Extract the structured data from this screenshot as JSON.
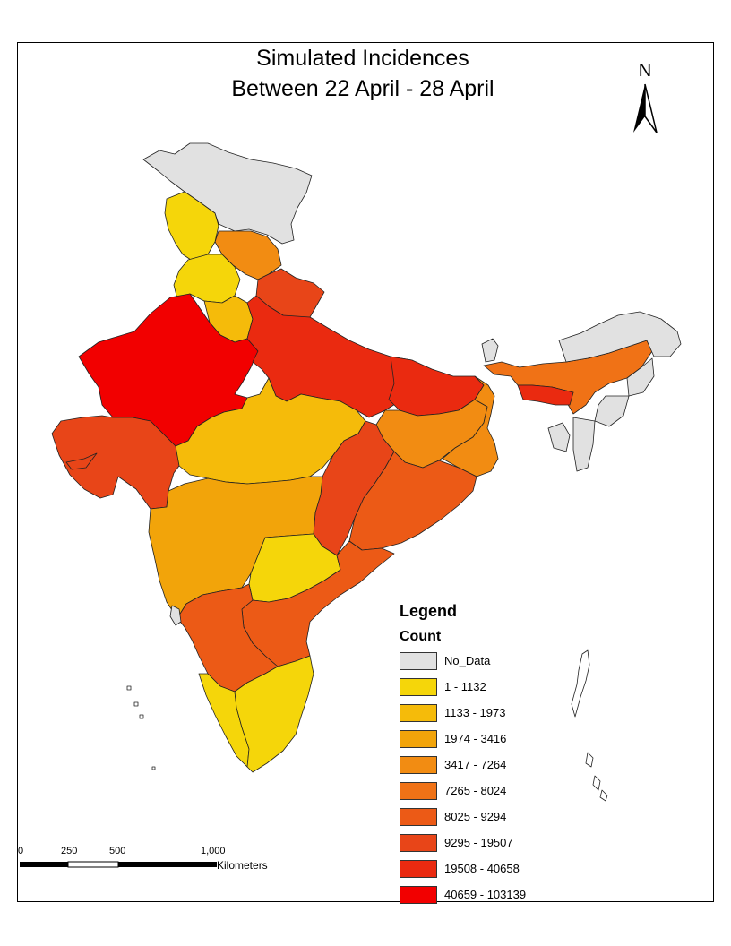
{
  "title": {
    "line1": "Simulated Incidences",
    "line2": "Between 22 April - 28 April"
  },
  "north_arrow": {
    "label": "N"
  },
  "legend": {
    "title": "Legend",
    "subtitle": "Count",
    "classes": [
      {
        "label": "No_Data",
        "color": "#e1e1e1"
      },
      {
        "label": "1 - 1132",
        "color": "#f5d60a"
      },
      {
        "label": "1133 - 1973",
        "color": "#f5bb0a"
      },
      {
        "label": "1974 - 3416",
        "color": "#f2a40a"
      },
      {
        "label": "3417 - 7264",
        "color": "#f28c12"
      },
      {
        "label": "7265 - 8024",
        "color": "#f07216"
      },
      {
        "label": "8025 - 9294",
        "color": "#ec5a16"
      },
      {
        "label": "9295 - 19507",
        "color": "#e84518"
      },
      {
        "label": "19508 - 40658",
        "color": "#ea2a10"
      },
      {
        "label": "40659 - 103139",
        "color": "#f20000"
      }
    ]
  },
  "scalebar": {
    "ticks": [
      "0",
      "250",
      "500",
      "1,000"
    ],
    "units": "Kilometers"
  }
}
